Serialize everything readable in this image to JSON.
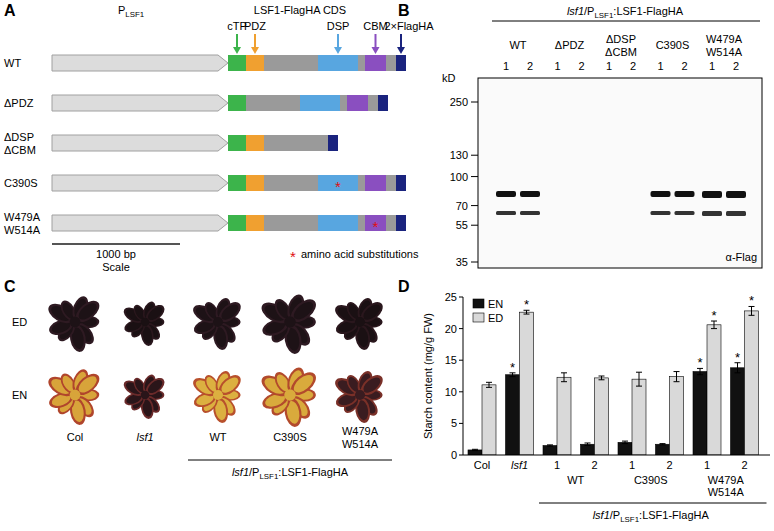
{
  "panels": {
    "A": {
      "label": "A",
      "promoter": [
        {
          "t": "P"
        },
        {
          "t": "LSF1",
          "sub": true
        }
      ],
      "cds_title": "LSF1-FlagHA CDS",
      "domains": [
        {
          "name": "cTP",
          "color": "#3cb44b"
        },
        {
          "name": "PDZ",
          "color": "#f0a030"
        },
        {
          "name": "DSP",
          "color": "#58a6e0"
        },
        {
          "name": "CBM",
          "color": "#8a4fc0"
        },
        {
          "name": "2×FlagHA",
          "color": "#1a237e"
        }
      ],
      "constructs": [
        {
          "name": [
            "WT"
          ],
          "domains": [
            "cTP",
            "PDZ",
            "DSP",
            "CBM",
            "2×FlagHA"
          ]
        },
        {
          "name": [
            "ΔPDZ"
          ],
          "domains": [
            "cTP",
            "DSP",
            "CBM",
            "2×FlagHA"
          ]
        },
        {
          "name": [
            "ΔDSP",
            "ΔCBM"
          ],
          "domains": [
            "cTP",
            "PDZ",
            "2×FlagHA"
          ]
        },
        {
          "name": [
            "C390S"
          ],
          "domains": [
            "cTP",
            "PDZ",
            "DSP",
            "CBM",
            "2×FlagHA"
          ],
          "substitution": "DSP"
        },
        {
          "name": [
            "W479A",
            "W514A"
          ],
          "domains": [
            "cTP",
            "PDZ",
            "DSP",
            "CBM",
            "2×FlagHA"
          ],
          "substitution": "CBM"
        }
      ],
      "scale_value": "1000 bp",
      "scale_label": "Scale",
      "legend_symbol": "*",
      "legend_note": "amino acid substitutions"
    },
    "B": {
      "label": "B",
      "title": [
        {
          "t": "lsf1",
          "i": true
        },
        {
          "t": "/P"
        },
        {
          "t": "LSF1",
          "sub": true
        },
        {
          "t": ":LSF1-FlagHA"
        }
      ],
      "kd_label": "kD",
      "markers": [
        250,
        130,
        100,
        70,
        55,
        35
      ],
      "lanes": [
        {
          "name": [
            "WT"
          ],
          "numbers": [
            1,
            2
          ]
        },
        {
          "name": [
            "ΔPDZ"
          ],
          "numbers": [
            1,
            2
          ]
        },
        {
          "name": [
            "ΔDSP",
            "ΔCBM"
          ],
          "numbers": [
            1,
            2
          ]
        },
        {
          "name": [
            "C390S"
          ],
          "numbers": [
            1,
            2
          ]
        },
        {
          "name": [
            "W479A",
            "W514A"
          ],
          "numbers": [
            1,
            2
          ]
        }
      ],
      "antibody": "α-Flag"
    },
    "C": {
      "label": "C",
      "rows": [
        "ED",
        "EN"
      ],
      "columns": [
        [
          {
            "t": "Col"
          }
        ],
        [
          {
            "t": "lsf1",
            "i": true
          }
        ],
        [
          {
            "t": "WT"
          }
        ],
        [
          {
            "t": "C390S"
          }
        ],
        [
          {
            "t": "W479A"
          },
          {
            "t": "W514A"
          }
        ]
      ],
      "bracket_label": [
        {
          "t": "lsf1",
          "i": true
        },
        {
          "t": "/P"
        },
        {
          "t": "LSF1",
          "sub": true
        },
        {
          "t": ":LSF1-FlagHA"
        }
      ]
    },
    "D": {
      "label": "D"
    }
  },
  "chart_data": {
    "type": "bar",
    "y_label": "Starch content (mg/g FW)",
    "categories": [
      "Col",
      "lsf1",
      "1",
      "2",
      "1",
      "2",
      "1",
      "2"
    ],
    "groups": [
      {
        "label": [
          "WT"
        ],
        "from": 2,
        "to": 3
      },
      {
        "label": [
          "C390S"
        ],
        "from": 4,
        "to": 5
      },
      {
        "label": [
          "W479A",
          "W514A"
        ],
        "from": 6,
        "to": 7
      }
    ],
    "group_label": [
      {
        "t": "lsf1",
        "i": true
      },
      {
        "t": "/P"
      },
      {
        "t": "LSF1",
        "sub": true
      },
      {
        "t": ":LSF1-FlagHA"
      }
    ],
    "series": [
      {
        "name": "EN",
        "color": "#111111",
        "values": [
          0.8,
          12.7,
          1.5,
          1.7,
          2.0,
          1.7,
          13.2,
          13.8
        ],
        "errors": [
          0.1,
          0.3,
          0.1,
          0.2,
          0.2,
          0.1,
          0.5,
          0.8
        ],
        "significance": [
          null,
          "*",
          null,
          null,
          null,
          null,
          "*",
          "*"
        ]
      },
      {
        "name": "ED",
        "color": "#d9d9d9",
        "values": [
          11.1,
          22.6,
          12.3,
          12.2,
          12.0,
          12.4,
          20.6,
          22.8
        ],
        "errors": [
          0.4,
          0.3,
          0.7,
          0.3,
          1.1,
          0.8,
          0.6,
          0.7
        ],
        "significance": [
          null,
          "*",
          null,
          null,
          null,
          null,
          "*",
          "*"
        ]
      }
    ],
    "ylim": [
      0,
      25
    ],
    "yticks": [
      0,
      5,
      10,
      15,
      20,
      25
    ],
    "legend": "upper left",
    "grid": false
  }
}
